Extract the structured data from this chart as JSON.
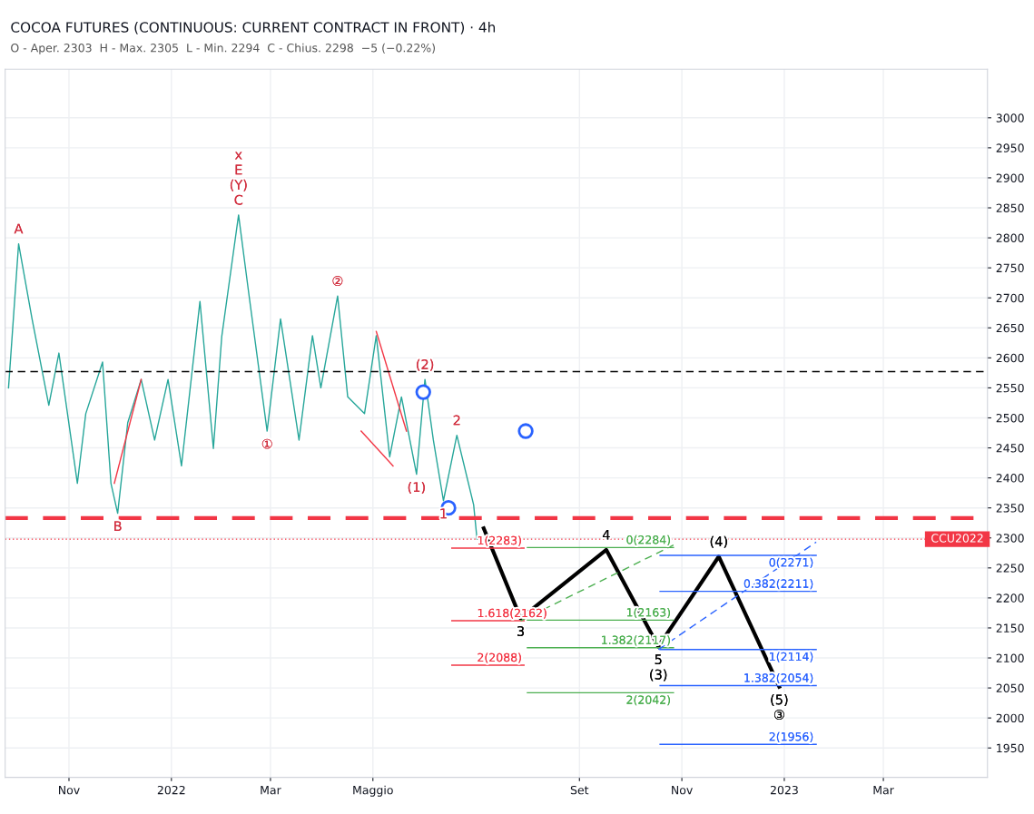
{
  "chart_data": {
    "type": "line",
    "title": "COCOA FUTURES (CONTINUOUS: CURRENT CONTRACT IN FRONT) · 4h",
    "subtitle": "O - Aper. 2303  H - Max. 2305  L - Min. 2294  C - Chius. 2298  −5 (−0.22%)",
    "xlim": [
      "2021-09-24",
      "2023-05-02"
    ],
    "ylim": [
      1901,
      3081
    ],
    "xticks": [
      {
        "value": "2021-11-01",
        "label": "Nov"
      },
      {
        "value": "2022-01-01",
        "label": "2022"
      },
      {
        "value": "2022-03-01",
        "label": "Mar"
      },
      {
        "value": "2022-05-01",
        "label": "Maggio"
      },
      {
        "value": "2022-09-01",
        "label": "Set"
      },
      {
        "value": "2022-11-01",
        "label": "Nov"
      },
      {
        "value": "2023-01-01",
        "label": "2023"
      },
      {
        "value": "2023-03-01",
        "label": "Mar"
      }
    ],
    "yticks": [
      1950,
      2000,
      2050,
      2100,
      2150,
      2200,
      2250,
      2300,
      2350,
      2400,
      2450,
      2500,
      2550,
      2600,
      2650,
      2700,
      2750,
      2800,
      2850,
      2900,
      2950,
      3000
    ],
    "grid": true,
    "legend": false,
    "series": [
      {
        "color": "#26a69a",
        "x": [
          "2021-09-26",
          "2021-10-02",
          "2021-10-10",
          "2021-10-20",
          "2021-10-26",
          "2021-11-06",
          "2021-11-11",
          "2021-11-21",
          "2021-11-26",
          "2021-11-30",
          "2021-12-06",
          "2021-12-14",
          "2021-12-22",
          "2021-12-30",
          "2022-01-07",
          "2022-01-18",
          "2022-01-26",
          "2022-01-31",
          "2022-02-10",
          "2022-02-16",
          "2022-02-27",
          "2022-03-07",
          "2022-03-18",
          "2022-03-26",
          "2022-03-31",
          "2022-04-10",
          "2022-04-16",
          "2022-04-26",
          "2022-05-03",
          "2022-05-11",
          "2022-05-18",
          "2022-05-27",
          "2022-06-01",
          "2022-06-06",
          "2022-06-12",
          "2022-06-20",
          "2022-06-30",
          "2022-07-02"
        ],
        "values": [
          2550,
          2790,
          2665,
          2521,
          2608,
          2391,
          2507,
          2593,
          2391,
          2341,
          2492,
          2564,
          2463,
          2564,
          2420,
          2694,
          2449,
          2636,
          2838,
          2709,
          2478,
          2665,
          2463,
          2637,
          2550,
          2703,
          2535,
          2507,
          2637,
          2435,
          2535,
          2406,
          2564,
          2463,
          2362,
          2471,
          2355,
          2298
        ]
      },
      {
        "color": "#000000",
        "x": [
          "2022-07-06",
          "2022-07-28",
          "2022-09-17",
          "2022-10-18",
          "2022-11-23",
          "2022-12-29"
        ],
        "values": [
          2316,
          2166,
          2280,
          2119,
          2269,
          2052
        ]
      },
      {
        "type": "line",
        "color": "#f23645",
        "x": [
          "2021-11-28",
          "2021-12-14"
        ],
        "values": [
          2391,
          2564
        ]
      },
      {
        "type": "line",
        "color": "#f23645",
        "x": [
          "2022-05-03",
          "2022-05-21"
        ],
        "values": [
          2644,
          2478
        ]
      },
      {
        "type": "line",
        "color": "#f23645",
        "x": [
          "2022-04-24",
          "2022-05-13"
        ],
        "values": [
          2478,
          2420
        ]
      },
      {
        "type": "line",
        "color": "#f23645",
        "x": [
          "2022-06-17",
          "2022-07-30"
        ],
        "values": [
          2283,
          2283
        ]
      },
      {
        "type": "line",
        "color": "#f23645",
        "x": [
          "2022-06-17",
          "2022-07-30"
        ],
        "values": [
          2162,
          2162
        ]
      },
      {
        "type": "line",
        "color": "#f23645",
        "x": [
          "2022-06-17",
          "2022-07-30"
        ],
        "values": [
          2088,
          2088
        ]
      },
      {
        "type": "line",
        "color": "#4caf50",
        "x": [
          "2022-08-01",
          "2022-10-27"
        ],
        "values": [
          2284,
          2284
        ]
      },
      {
        "type": "line",
        "color": "#4caf50",
        "x": [
          "2022-08-01",
          "2022-10-27"
        ],
        "values": [
          2163,
          2163
        ]
      },
      {
        "type": "line",
        "color": "#4caf50",
        "x": [
          "2022-08-01",
          "2022-10-27"
        ],
        "values": [
          2117,
          2117
        ]
      },
      {
        "type": "line",
        "color": "#4caf50",
        "x": [
          "2022-08-01",
          "2022-10-27"
        ],
        "values": [
          2042,
          2042
        ]
      },
      {
        "type": "line",
        "color": "#4caf50",
        "line_style": "dashed",
        "x": [
          "2022-07-28",
          "2022-10-27"
        ],
        "values": [
          2162,
          2288
        ]
      },
      {
        "type": "line",
        "color": "#2962ff",
        "x": [
          "2022-10-19",
          "2023-01-20"
        ],
        "values": [
          2271,
          2271
        ]
      },
      {
        "type": "line",
        "color": "#2962ff",
        "x": [
          "2022-10-19",
          "2023-01-20"
        ],
        "values": [
          2211,
          2211
        ]
      },
      {
        "type": "line",
        "color": "#2962ff",
        "x": [
          "2022-10-19",
          "2023-01-20"
        ],
        "values": [
          2114,
          2114
        ]
      },
      {
        "type": "line",
        "color": "#2962ff",
        "x": [
          "2022-10-19",
          "2023-01-20"
        ],
        "values": [
          2054,
          2054
        ]
      },
      {
        "type": "line",
        "color": "#2962ff",
        "x": [
          "2022-10-19",
          "2023-01-20"
        ],
        "values": [
          1956,
          1956
        ]
      },
      {
        "type": "line",
        "color": "#2962ff",
        "line_style": "dashed",
        "x": [
          "2022-10-18",
          "2023-01-20"
        ],
        "values": [
          2114,
          2293
        ]
      },
      {
        "type": "scatter",
        "color": "#2962ff",
        "marker": "circle",
        "x": [
          "2022-05-31",
          "2022-06-15",
          "2022-07-31"
        ],
        "values": [
          2543,
          2350,
          2478
        ]
      }
    ],
    "ref_lines": [
      {
        "axis": "y",
        "value": 2333,
        "color": "#f23645",
        "line_style": "dashed"
      },
      {
        "axis": "y",
        "value": 2577,
        "color": "#000000",
        "line_style": "dashed"
      },
      {
        "axis": "y",
        "value": 2298,
        "color": "#f23645",
        "line_style": "dotted",
        "label": "CCU2022"
      }
    ],
    "annotations": [
      {
        "text": "A",
        "x": "2021-10-02",
        "y": 2790
      },
      {
        "text": "B",
        "x": "2021-11-30",
        "y": 2341
      },
      {
        "text": "C",
        "x": "2022-02-10",
        "y": 2838
      },
      {
        "text": "(Y)",
        "x": "2022-02-10",
        "y": 2838
      },
      "E",
      "x",
      {
        "text": "①",
        "x": "2022-02-27",
        "y": 2478
      },
      {
        "text": "②",
        "x": "2022-04-10",
        "y": 2703
      },
      {
        "text": "(2)",
        "x": "2022-06-01",
        "y": 2564
      },
      {
        "text": "1",
        "x": "2022-06-12",
        "y": 2362
      },
      {
        "text": "(1)",
        "x": "2022-05-27",
        "y": 2406
      },
      {
        "text": "2",
        "x": "2022-06-20",
        "y": 2471
      },
      {
        "text": "4",
        "x": "2022-09-17",
        "y": 2280
      },
      {
        "text": "3",
        "x": "2022-07-28",
        "y": 2166
      },
      {
        "text": "5",
        "x": "2022-10-18",
        "y": 2119
      },
      {
        "text": "(3)",
        "x": "2022-10-18",
        "y": 2119
      },
      {
        "text": "(4)",
        "x": "2022-11-23",
        "y": 2269
      },
      {
        "text": "(5)",
        "x": "2022-12-29",
        "y": 2052
      },
      {
        "text": "③",
        "x": "2022-12-29",
        "y": 2052
      },
      {
        "text": "1(2283)",
        "x": "2022-06-17",
        "y": 2283
      },
      {
        "text": "1.618(2162)",
        "x": "2022-06-17",
        "y": 2162
      },
      {
        "text": "2(2088)",
        "x": "2022-06-17",
        "y": 2088
      },
      {
        "text": "0(2284)",
        "x": "2022-10-27",
        "y": 2284
      },
      {
        "text": "1(2163)",
        "x": "2022-10-27",
        "y": 2163
      },
      {
        "text": "1.382(2117)",
        "x": "2022-10-27",
        "y": 2117
      },
      {
        "text": "2(2042)",
        "x": "2022-10-27",
        "y": 2042
      },
      {
        "text": "0(2271)",
        "x": "2023-01-20",
        "y": 2271
      },
      {
        "text": "0.382(2211)",
        "x": "2023-01-20",
        "y": 2211
      },
      {
        "text": "1(2114)",
        "x": "2023-01-20",
        "y": 2114
      },
      {
        "text": "1.382(2054)",
        "x": "2023-01-20",
        "y": 2054
      },
      {
        "text": "2(1956)",
        "x": "2023-01-20",
        "y": 1956
      }
    ]
  }
}
